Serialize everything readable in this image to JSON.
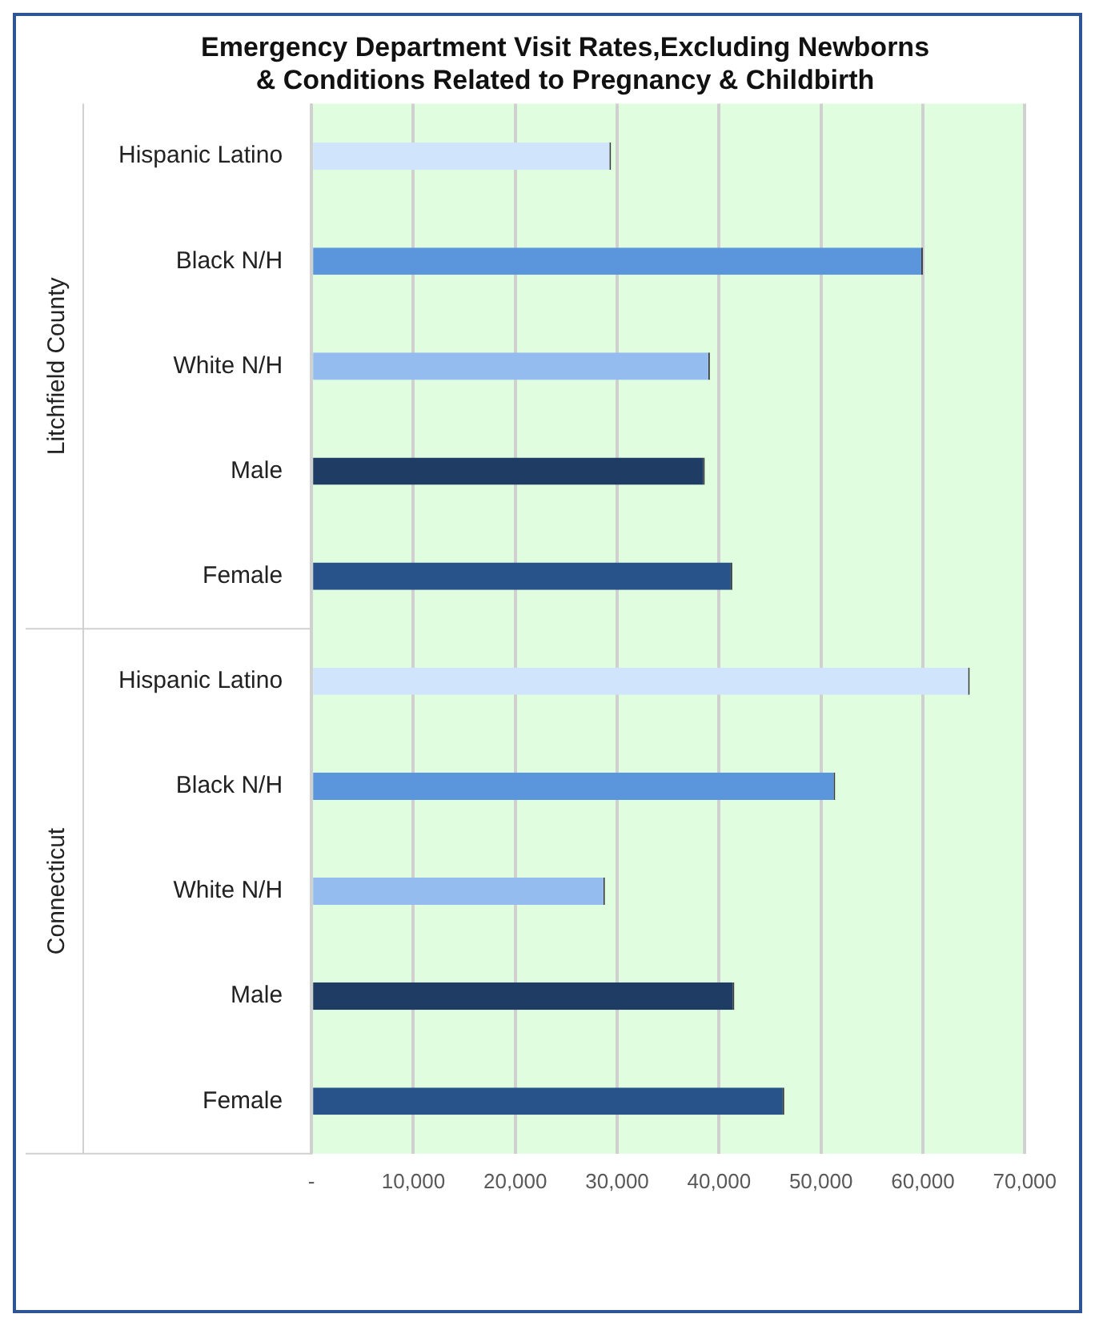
{
  "chart_data": {
    "type": "bar",
    "orientation": "horizontal",
    "title": "Emergency Department Visit Rates,Excluding Newborns\n& Conditions Related to Pregnancy & Childbirth",
    "categories": [
      "Hispanic Latino",
      "Black N/H",
      "White N/H",
      "Male",
      "Female",
      "Hispanic Latino",
      "Black N/H",
      "White N/H",
      "Male",
      "Female"
    ],
    "values": [
      29400,
      60000,
      39100,
      38600,
      41300,
      64600,
      51400,
      28800,
      41500,
      46400
    ],
    "colors": [
      "#d0e4fc",
      "#5b96dd",
      "#94bcee",
      "#1f3c64",
      "#27528a",
      "#d0e4fc",
      "#5b96dd",
      "#94bcee",
      "#1f3c64",
      "#27528a"
    ],
    "xlim": [
      0,
      70000
    ],
    "xticks": [
      {
        "value": 0,
        "label": "-"
      },
      {
        "value": 10000,
        "label": "10,000"
      },
      {
        "value": 20000,
        "label": "20,000"
      },
      {
        "value": 30000,
        "label": "30,000"
      },
      {
        "value": 40000,
        "label": "40,000"
      },
      {
        "value": 50000,
        "label": "50,000"
      },
      {
        "value": 60000,
        "label": "60,000"
      },
      {
        "value": 70000,
        "label": "70,000"
      }
    ],
    "grid": "x",
    "legend": false,
    "annotations": [
      "Litchfield County",
      "Connecticut"
    ]
  }
}
